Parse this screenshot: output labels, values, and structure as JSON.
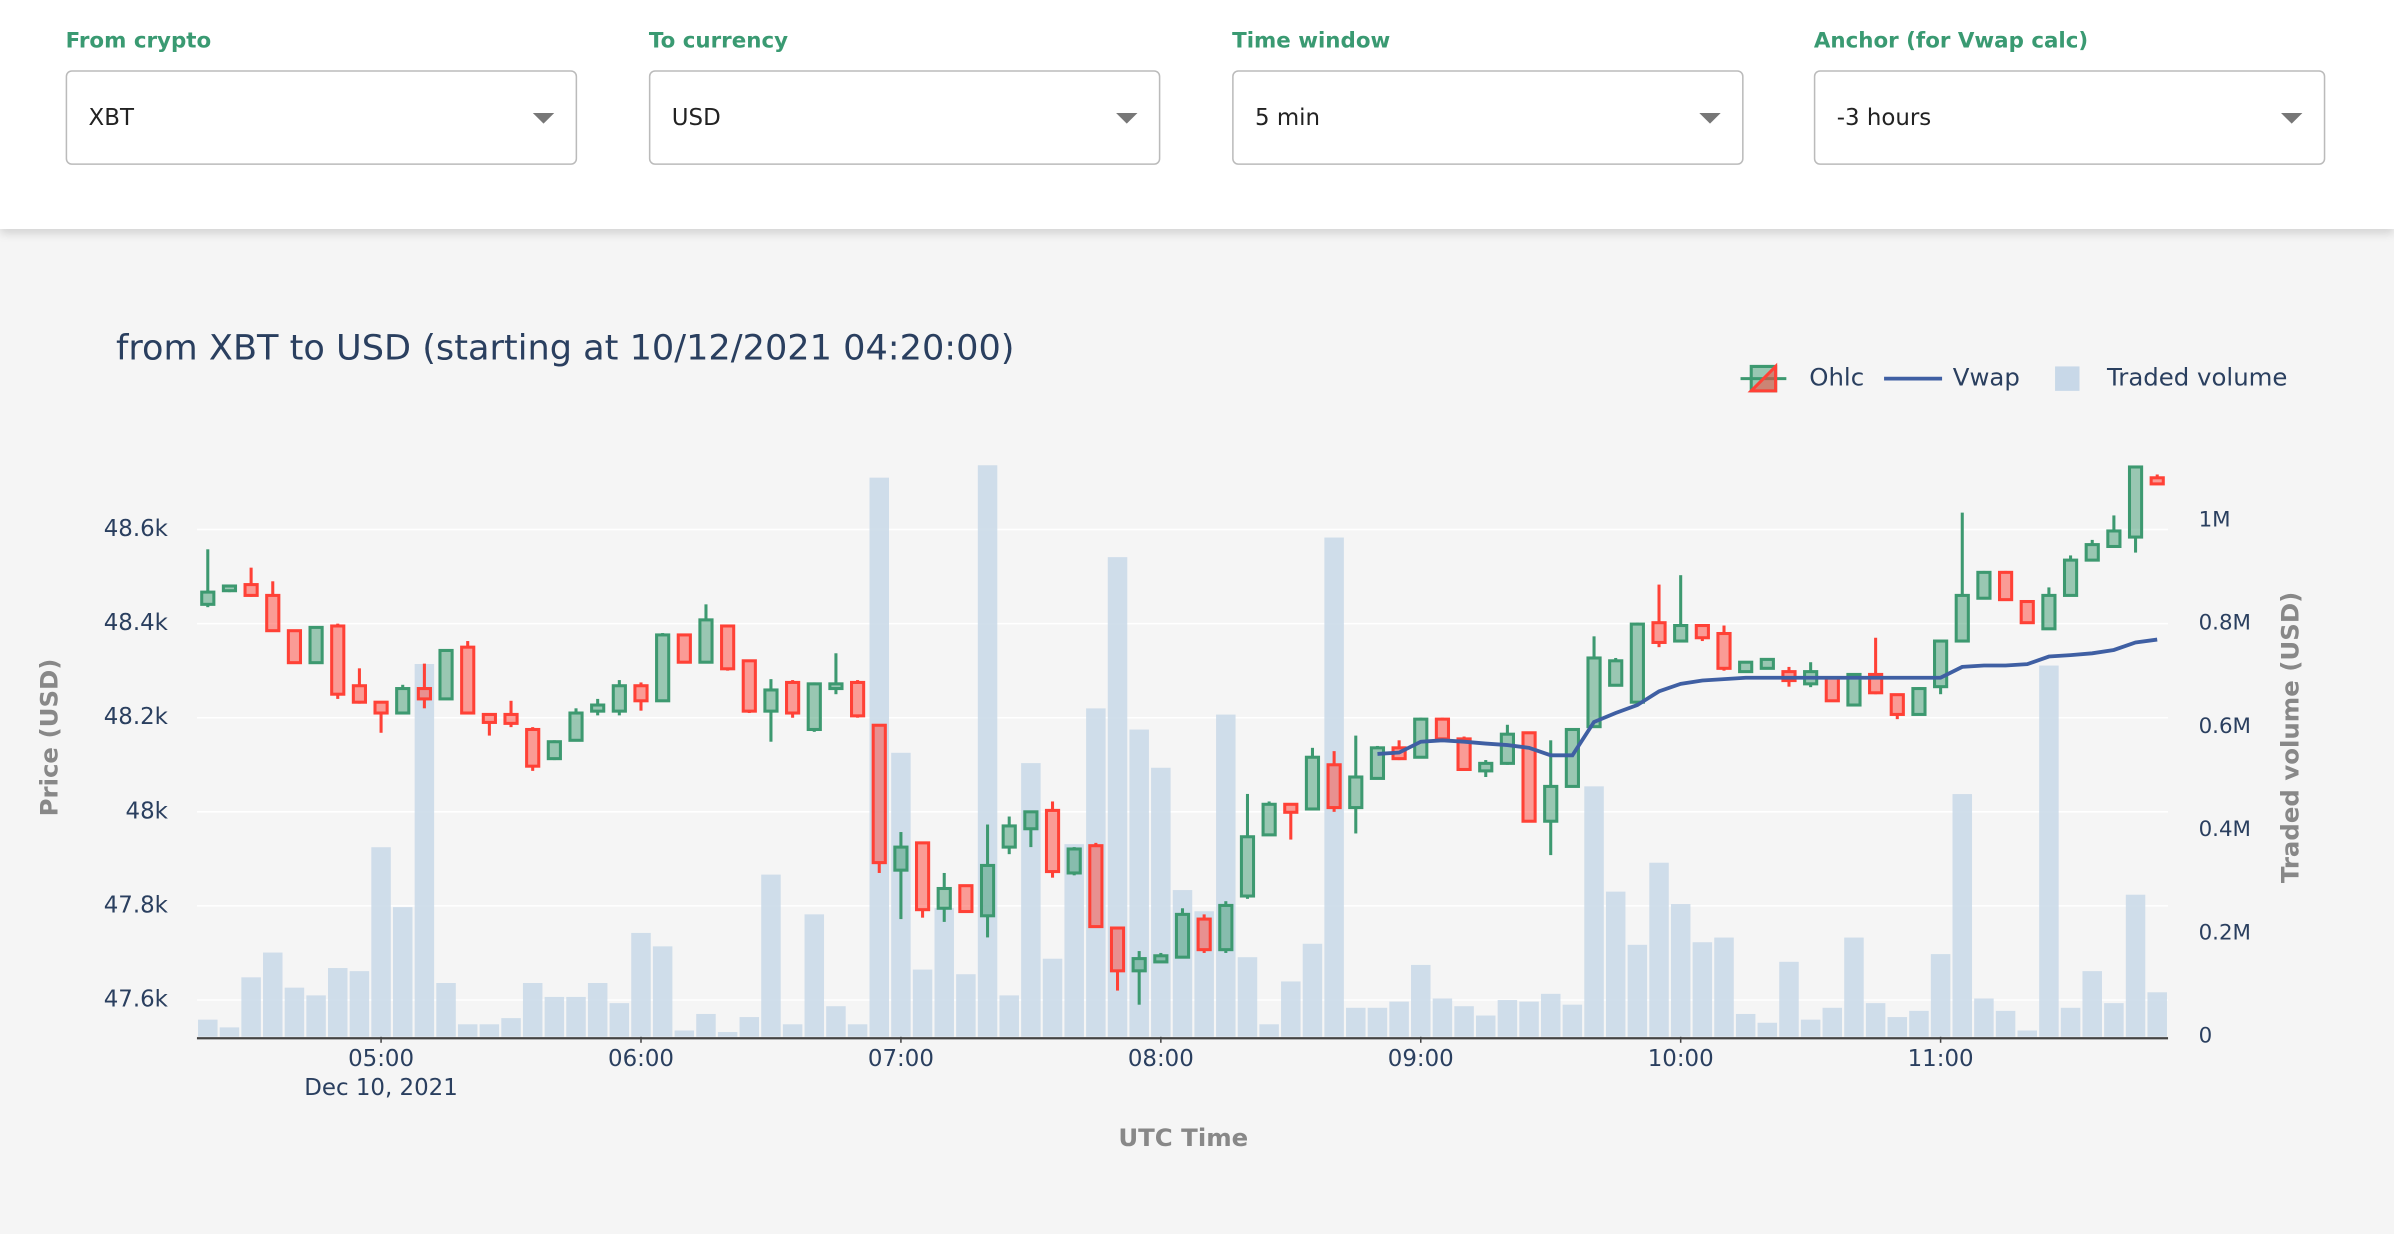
{
  "controls": [
    {
      "label": "From crypto",
      "value": "XBT"
    },
    {
      "label": "To currency",
      "value": "USD"
    },
    {
      "label": "Time window",
      "value": "5 min"
    },
    {
      "label": "Anchor (for Vwap calc)",
      "value": "-3 hours"
    }
  ],
  "chart_data": {
    "type": "candlestick",
    "title": "from XBT to USD (starting at 10/12/2021 04:20:00)",
    "xlabel": "UTC Time",
    "ylabel": "Price (USD)",
    "y2label": "Traded volume (USD)",
    "x": [
      "2021-12-10 04:20",
      "2021-12-10 04:25",
      "2021-12-10 04:30",
      "2021-12-10 04:35",
      "2021-12-10 04:40",
      "2021-12-10 04:45",
      "2021-12-10 04:50",
      "2021-12-10 04:55",
      "2021-12-10 05:00",
      "2021-12-10 05:05",
      "2021-12-10 05:10",
      "2021-12-10 05:15",
      "2021-12-10 05:20",
      "2021-12-10 05:25",
      "2021-12-10 05:30",
      "2021-12-10 05:35",
      "2021-12-10 05:40",
      "2021-12-10 05:45",
      "2021-12-10 05:50",
      "2021-12-10 05:55",
      "2021-12-10 06:00",
      "2021-12-10 06:05",
      "2021-12-10 06:10",
      "2021-12-10 06:15",
      "2021-12-10 06:20",
      "2021-12-10 06:25",
      "2021-12-10 06:30",
      "2021-12-10 06:35",
      "2021-12-10 06:40",
      "2021-12-10 06:45",
      "2021-12-10 06:50",
      "2021-12-10 06:55",
      "2021-12-10 07:00",
      "2021-12-10 07:05",
      "2021-12-10 07:10",
      "2021-12-10 07:15",
      "2021-12-10 07:20",
      "2021-12-10 07:25",
      "2021-12-10 07:30",
      "2021-12-10 07:35",
      "2021-12-10 07:40",
      "2021-12-10 07:45",
      "2021-12-10 07:50",
      "2021-12-10 07:55",
      "2021-12-10 08:00",
      "2021-12-10 08:05",
      "2021-12-10 08:10",
      "2021-12-10 08:15",
      "2021-12-10 08:20",
      "2021-12-10 08:25",
      "2021-12-10 08:30",
      "2021-12-10 08:35",
      "2021-12-10 08:40",
      "2021-12-10 08:45",
      "2021-12-10 08:50",
      "2021-12-10 08:55",
      "2021-12-10 09:00",
      "2021-12-10 09:05",
      "2021-12-10 09:10",
      "2021-12-10 09:15",
      "2021-12-10 09:20",
      "2021-12-10 09:25",
      "2021-12-10 09:30",
      "2021-12-10 09:35",
      "2021-12-10 09:40",
      "2021-12-10 09:45",
      "2021-12-10 09:50",
      "2021-12-10 09:55",
      "2021-12-10 10:00",
      "2021-12-10 10:05",
      "2021-12-10 10:10",
      "2021-12-10 10:15",
      "2021-12-10 10:20",
      "2021-12-10 10:25",
      "2021-12-10 10:30",
      "2021-12-10 10:35",
      "2021-12-10 10:40",
      "2021-12-10 10:45",
      "2021-12-10 10:50",
      "2021-12-10 10:55",
      "2021-12-10 11:00",
      "2021-12-10 11:05",
      "2021-12-10 11:10",
      "2021-12-10 11:15",
      "2021-12-10 11:20",
      "2021-12-10 11:25",
      "2021-12-10 11:30",
      "2021-12-10 11:35",
      "2021-12-10 11:40",
      "2021-12-10 11:45",
      "2021-12-10 11:50"
    ],
    "series": [
      {
        "name": "Ohlc",
        "type": "candlestick",
        "increasing_color": "#3d9970",
        "decreasing_color": "#ff4136",
        "open": [
          48441,
          48470,
          48483,
          48460,
          48385,
          48317,
          48395,
          48268,
          48233,
          48210,
          48262,
          48240,
          48350,
          48207,
          48207,
          48175,
          48113,
          48152,
          48214,
          48214,
          48268,
          48236,
          48376,
          48318,
          48395,
          48321,
          48214,
          48275,
          48175,
          48262,
          48275,
          48184,
          47876,
          47934,
          47795,
          47843,
          47779,
          47925,
          47964,
          48003,
          47870,
          47928,
          47753,
          47662,
          47681,
          47691,
          47772,
          47707,
          47821,
          47951,
          48016,
          48006,
          48100,
          48009,
          48071,
          48136,
          48116,
          48197,
          48155,
          48087,
          48103,
          48168,
          47980,
          48054,
          48181,
          48269,
          48233,
          48402,
          48363,
          48396,
          48379,
          48298,
          48305,
          48298,
          48272,
          48285,
          48227,
          48292,
          48249,
          48207,
          48266,
          48363,
          48454,
          48509,
          48447,
          48389,
          48460,
          48535,
          48564,
          48584,
          48710
        ],
        "high": [
          48558,
          48483,
          48519,
          48490,
          48385,
          48395,
          48400,
          48305,
          48233,
          48270,
          48315,
          48345,
          48363,
          48207,
          48236,
          48180,
          48152,
          48220,
          48240,
          48280,
          48275,
          48380,
          48376,
          48441,
          48395,
          48321,
          48282,
          48280,
          48275,
          48337,
          48280,
          48184,
          47957,
          47934,
          47870,
          47843,
          47973,
          47990,
          48000,
          48022,
          47925,
          47934,
          47753,
          47704,
          47700,
          47795,
          47782,
          47810,
          48038,
          48022,
          48016,
          48136,
          48129,
          48162,
          48140,
          48152,
          48200,
          48200,
          48160,
          48110,
          48185,
          48168,
          48152,
          48178,
          48373,
          48327,
          48402,
          48483,
          48503,
          48396,
          48396,
          48318,
          48324,
          48308,
          48318,
          48285,
          48292,
          48370,
          48249,
          48265,
          48363,
          48636,
          48512,
          48512,
          48450,
          48477,
          48545,
          48578,
          48630,
          48733,
          48717
        ],
        "low": [
          48435,
          48467,
          48457,
          48385,
          48317,
          48317,
          48240,
          48230,
          48168,
          48210,
          48220,
          48240,
          48210,
          48162,
          48180,
          48087,
          48110,
          48150,
          48205,
          48205,
          48215,
          48236,
          48318,
          48318,
          48300,
          48210,
          48149,
          48200,
          48170,
          48250,
          48200,
          47870,
          47772,
          47775,
          47766,
          47785,
          47733,
          47910,
          47925,
          47860,
          47865,
          47756,
          47620,
          47590,
          47680,
          47690,
          47700,
          47700,
          47815,
          47951,
          47941,
          48006,
          48000,
          47954,
          48071,
          48110,
          48116,
          48155,
          48090,
          48074,
          48100,
          47980,
          47908,
          48054,
          48181,
          48269,
          48233,
          48350,
          48360,
          48363,
          48300,
          48298,
          48305,
          48266,
          48265,
          48236,
          48227,
          48250,
          48197,
          48207,
          48250,
          48360,
          48454,
          48451,
          48402,
          48389,
          48460,
          48535,
          48564,
          48551,
          48695
        ],
        "close": [
          48467,
          48480,
          48460,
          48385,
          48317,
          48392,
          48250,
          48233,
          48210,
          48262,
          48240,
          48343,
          48210,
          48190,
          48188,
          48097,
          48149,
          48210,
          48227,
          48268,
          48236,
          48376,
          48318,
          48408,
          48304,
          48214,
          48259,
          48210,
          48272,
          48272,
          48204,
          47892,
          47925,
          47792,
          47837,
          47788,
          47886,
          47970,
          48000,
          47873,
          47921,
          47756,
          47662,
          47688,
          47694,
          47782,
          47707,
          47801,
          47947,
          48016,
          47999,
          48116,
          48009,
          48074,
          48136,
          48113,
          48197,
          48155,
          48090,
          48103,
          48165,
          47980,
          48054,
          48175,
          48327,
          48321,
          48399,
          48360,
          48396,
          48370,
          48305,
          48318,
          48324,
          48279,
          48298,
          48236,
          48292,
          48253,
          48207,
          48262,
          48363,
          48460,
          48509,
          48451,
          48402,
          48460,
          48535,
          48568,
          48597,
          48733,
          48697
        ]
      },
      {
        "name": "Vwap",
        "type": "line",
        "color": "#3f5fa3",
        "values": [
          null,
          null,
          null,
          null,
          null,
          null,
          null,
          null,
          null,
          null,
          null,
          null,
          null,
          null,
          null,
          null,
          null,
          null,
          null,
          null,
          null,
          null,
          null,
          null,
          null,
          null,
          null,
          null,
          null,
          null,
          null,
          null,
          null,
          null,
          null,
          null,
          null,
          null,
          null,
          null,
          null,
          null,
          null,
          null,
          null,
          null,
          null,
          null,
          null,
          null,
          null,
          null,
          null,
          null,
          48123,
          48126,
          48149,
          48152,
          48149,
          48145,
          48142,
          48136,
          48120,
          48120,
          48191,
          48210,
          48227,
          48256,
          48272,
          48279,
          48282,
          48285,
          48285,
          48285,
          48285,
          48285,
          48285,
          48285,
          48285,
          48285,
          48285,
          48308,
          48311,
          48311,
          48314,
          48330,
          48333,
          48337,
          48344,
          48360,
          48366
        ]
      },
      {
        "name": "Traded volume",
        "type": "bar",
        "axis": "y2",
        "color": "#c8d8e8",
        "values": [
          33000,
          18000,
          115000,
          163000,
          95000,
          80000,
          133000,
          127000,
          367000,
          251000,
          722000,
          104000,
          24000,
          24000,
          36000,
          104000,
          77000,
          77000,
          104000,
          65000,
          201000,
          175000,
          12000,
          44000,
          9000,
          38000,
          314000,
          24000,
          237000,
          59000,
          24000,
          1083000,
          550000,
          130000,
          249000,
          121000,
          1107000,
          80000,
          530000,
          151000,
          373000,
          636000,
          929000,
          595000,
          521000,
          284000,
          243000,
          624000,
          154000,
          24000,
          107000,
          180000,
          967000,
          56000,
          56000,
          68000,
          139000,
          74000,
          59000,
          41000,
          71000,
          68000,
          83000,
          62000,
          485000,
          281000,
          178000,
          337000,
          257000,
          183000,
          192000,
          44000,
          27000,
          145000,
          33000,
          56000,
          192000,
          65000,
          38000,
          50000,
          160000,
          470000,
          74000,
          50000,
          12000,
          719000,
          56000,
          127000,
          65000,
          275000,
          86000
        ]
      }
    ],
    "xlim": [
      "2021-12-10 04:17:30",
      "2021-12-10 11:52:30"
    ],
    "xticks": [
      {
        "value": "2021-12-10 05:00",
        "label": "05:00"
      },
      {
        "value": "2021-12-10 06:00",
        "label": "06:00"
      },
      {
        "value": "2021-12-10 07:00",
        "label": "07:00"
      },
      {
        "value": "2021-12-10 08:00",
        "label": "08:00"
      },
      {
        "value": "2021-12-10 09:00",
        "label": "09:00"
      },
      {
        "value": "2021-12-10 10:00",
        "label": "10:00"
      },
      {
        "value": "2021-12-10 11:00",
        "label": "11:00"
      }
    ],
    "x_date_label": "Dec 10, 2021",
    "ylim": [
      47522,
      48752
    ],
    "yticks": [
      {
        "value": 47600,
        "label": "47.6k"
      },
      {
        "value": 47800,
        "label": "47.8k"
      },
      {
        "value": 48000,
        "label": "48k"
      },
      {
        "value": 48200,
        "label": "48.2k"
      },
      {
        "value": 48400,
        "label": "48.4k"
      },
      {
        "value": 48600,
        "label": "48.6k"
      }
    ],
    "y2lim": [
      0,
      1121000
    ],
    "y2ticks": [
      0,
      {
        "value": 200000,
        "label": "0.2M"
      },
      {
        "value": 400000,
        "label": "0.4M"
      },
      {
        "value": 600000,
        "label": "0.6M"
      },
      {
        "value": 800000,
        "label": "0.8M"
      },
      {
        "value": 1000000,
        "label": "1M"
      }
    ],
    "grid": true,
    "legend": "top-right"
  }
}
